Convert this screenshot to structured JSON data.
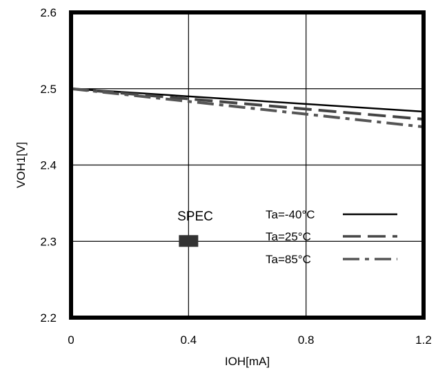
{
  "chart_data": {
    "type": "line",
    "xlabel": "IOH[mA]",
    "ylabel": "VOH1[V]",
    "xlim": [
      0,
      1.2
    ],
    "ylim": [
      2.2,
      2.6
    ],
    "x_ticks": [
      0,
      0.4,
      0.8,
      1.2
    ],
    "y_ticks": [
      2.2,
      2.3,
      2.4,
      2.5,
      2.6
    ],
    "x_tick_labels": [
      "0",
      "0.4",
      "0.8",
      "1.2"
    ],
    "y_tick_labels": [
      "2.2",
      "2.3",
      "2.4",
      "2.5",
      "2.6"
    ],
    "grid": true,
    "legend_position": "center-right",
    "series": [
      {
        "name": "Ta=-40°C",
        "style": "solid",
        "color": "#000000",
        "x": [
          0,
          1.2
        ],
        "y": [
          2.5,
          2.47
        ]
      },
      {
        "name": "Ta=25°C",
        "style": "dashed",
        "color": "#444444",
        "x": [
          0,
          1.2
        ],
        "y": [
          2.5,
          2.46
        ]
      },
      {
        "name": "Ta=85°C",
        "style": "dash-dot",
        "color": "#555555",
        "x": [
          0,
          1.2
        ],
        "y": [
          2.5,
          2.45
        ]
      }
    ],
    "spec": {
      "label": "SPEC",
      "x": 0.4,
      "y": 2.3,
      "color": "#333333"
    }
  }
}
